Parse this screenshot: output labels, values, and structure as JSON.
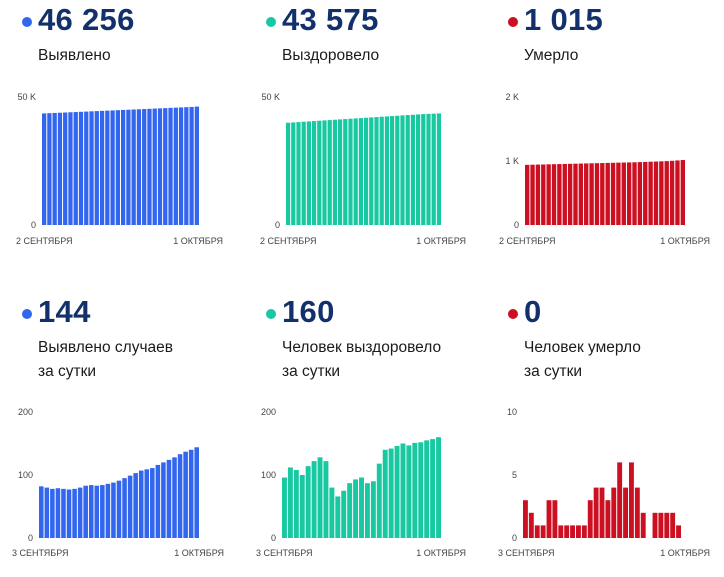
{
  "panels": [
    {
      "value": "46 256",
      "label_lines": [
        "Выявлено"
      ],
      "color": "#3366ee",
      "chart_data": {
        "type": "bar",
        "y_ticks": [
          "50 K",
          "0"
        ],
        "ylim": [
          0,
          50000
        ],
        "x_start_label": "2 СЕНТЯБРЯ",
        "x_end_label": "1 ОКТЯБРЯ",
        "values": [
          43590,
          43680,
          43770,
          43860,
          43950,
          44040,
          44130,
          44220,
          44310,
          44400,
          44490,
          44580,
          44670,
          44760,
          44850,
          44940,
          45030,
          45120,
          45210,
          45300,
          45390,
          45480,
          45570,
          45660,
          45750,
          45840,
          45930,
          46020,
          46110,
          46256
        ]
      }
    },
    {
      "value": "43 575",
      "label_lines": [
        "Выздоровело"
      ],
      "color": "#17c8a0",
      "chart_data": {
        "type": "bar",
        "y_ticks": [
          "50 K",
          "0"
        ],
        "ylim": [
          0,
          50000
        ],
        "x_start_label": "2 СЕНТЯБРЯ",
        "x_end_label": "1 ОКТЯБРЯ",
        "values": [
          39950,
          40080,
          40210,
          40340,
          40470,
          40600,
          40730,
          40860,
          40990,
          41120,
          41250,
          41380,
          41510,
          41640,
          41770,
          41900,
          42030,
          42160,
          42290,
          42420,
          42550,
          42680,
          42810,
          42940,
          43070,
          43200,
          43330,
          43415,
          43495,
          43575
        ]
      }
    },
    {
      "value": "1 015",
      "label_lines": [
        "Умерло"
      ],
      "color": "#cc1022",
      "chart_data": {
        "type": "bar",
        "y_ticks": [
          "2 K",
          "1 K",
          "0"
        ],
        "ylim": [
          0,
          2000
        ],
        "x_start_label": "2 СЕНТЯБРЯ",
        "x_end_label": "1 ОКТЯБРЯ",
        "values": [
          940,
          942,
          944,
          946,
          948,
          950,
          952,
          954,
          956,
          958,
          960,
          962,
          964,
          966,
          968,
          970,
          972,
          974,
          976,
          978,
          980,
          983,
          986,
          989,
          992,
          995,
          998,
          1003,
          1009,
          1015
        ]
      }
    },
    {
      "value": "144",
      "label_lines": [
        "Выявлено случаев",
        "за сутки"
      ],
      "color": "#3366ee",
      "chart_data": {
        "type": "bar",
        "y_ticks": [
          "200",
          "100",
          "0"
        ],
        "ylim": [
          0,
          200
        ],
        "x_start_label": "3 СЕНТЯБРЯ",
        "x_end_label": "1 ОКТЯБРЯ",
        "values": [
          82,
          80,
          78,
          79,
          78,
          77,
          78,
          80,
          83,
          84,
          83,
          84,
          86,
          88,
          91,
          95,
          99,
          103,
          107,
          109,
          111,
          116,
          120,
          124,
          128,
          133,
          137,
          140,
          144
        ]
      }
    },
    {
      "value": "160",
      "label_lines": [
        "Человек выздоровело",
        "за сутки"
      ],
      "color": "#17c8a0",
      "chart_data": {
        "type": "bar",
        "y_ticks": [
          "200",
          "100",
          "0"
        ],
        "ylim": [
          0,
          200
        ],
        "x_start_label": "3 СЕНТЯБРЯ",
        "x_end_label": "1 ОКТЯБРЯ",
        "values": [
          96,
          112,
          108,
          100,
          114,
          122,
          128,
          122,
          80,
          66,
          75,
          87,
          93,
          96,
          87,
          90,
          118,
          140,
          142,
          146,
          150,
          147,
          151,
          152,
          155,
          157,
          160
        ]
      }
    },
    {
      "value": "0",
      "label_lines": [
        "Человек умерло",
        "за сутки"
      ],
      "color": "#cc1022",
      "chart_data": {
        "type": "bar",
        "y_ticks": [
          "10",
          "5",
          "0"
        ],
        "ylim": [
          0,
          10
        ],
        "x_start_label": "3 СЕНТЯБРЯ",
        "x_end_label": "1 ОКТЯБРЯ",
        "values": [
          3,
          2,
          1,
          1,
          3,
          3,
          1,
          1,
          1,
          1,
          1,
          3,
          4,
          4,
          3,
          4,
          6,
          4,
          6,
          4,
          2,
          0,
          2,
          2,
          2,
          2,
          1
        ]
      }
    }
  ]
}
